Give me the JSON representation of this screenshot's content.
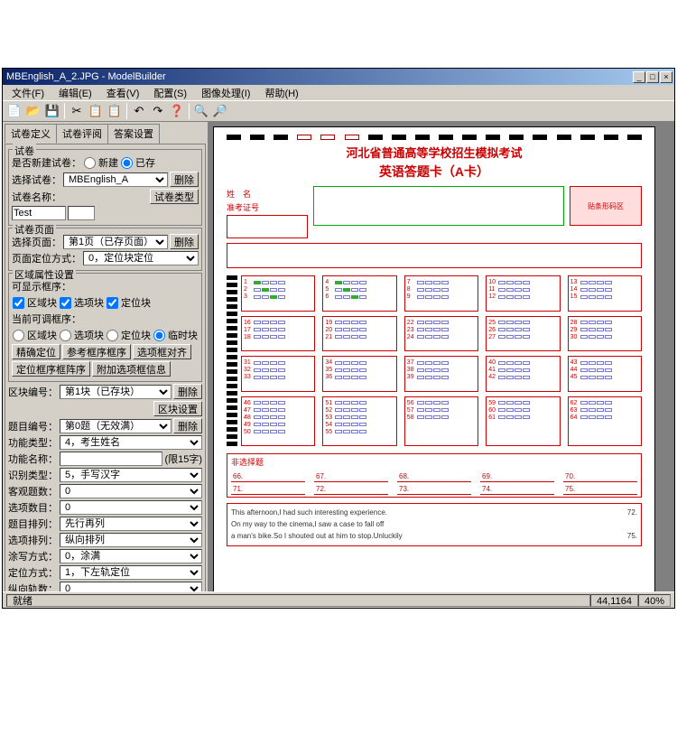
{
  "window": {
    "title": "MBEnglish_A_2.JPG - ModelBuilder"
  },
  "menu": {
    "file": "文件(F)",
    "edit": "编辑(E)",
    "view": "查看(V)",
    "config": "配置(S)",
    "image": "图像处理(I)",
    "help": "帮助(H)"
  },
  "toolbar_icons": [
    "📄",
    "📂",
    "💾",
    "✂",
    "📋",
    "📋",
    "↶",
    "↷",
    "❓",
    "🔍",
    "🔎"
  ],
  "tabs": {
    "t1": "试卷定义",
    "t2": "试卷评阅",
    "t3": "答案设置"
  },
  "panel": {
    "paper": {
      "title": "试卷",
      "new_label": "是否新建试卷：",
      "opt_new": "新建",
      "opt_exist": "已存",
      "select_label": "选择试卷：",
      "select_value": "MBEnglish_A",
      "btn_del": "删除",
      "name_label": "试卷名称：",
      "type_btn": "试卷类型",
      "test_value": "Test"
    },
    "page": {
      "title": "试卷页面",
      "sel_label": "选择页面：",
      "sel_value": "第1页（已存页面）",
      "btn_del": "删除",
      "pos_label": "页面定位方式：",
      "pos_value": "0，定位块定位"
    },
    "region": {
      "title": "区域属性设置",
      "show_label": "可显示框序：",
      "cb1": "区域块",
      "cb2": "选项块",
      "cb3": "定位块",
      "adj_label": "当前可调框序：",
      "r1": "区域块",
      "r2": "选项块",
      "r3": "定位块",
      "r4": "临时块",
      "btn_precise": "精确定位",
      "btn_ref": "参考框序框序",
      "btn_align": "选项框对齐",
      "btn_pos": "定位框序框阵序",
      "btn_extra": "附加选项框信息"
    },
    "block": {
      "num_label": "区块编号：",
      "num_value": "第1块（已存块）",
      "btn_del": "删除",
      "btn_cfg": "区块设置",
      "q_label": "题目编号：",
      "q_value": "第0题（无效满）",
      "btn_qdel": "删除",
      "func_type_label": "功能类型：",
      "func_type_value": "4，考生姓名",
      "func_name_label": "功能名称：",
      "func_name_hint": "(限15字)",
      "rec_label": "识别类型：",
      "rec_value": "5，手写汉字",
      "obj_label": "客观题数：",
      "obj_value": "0",
      "opt_label": "选项数目：",
      "opt_value": "0",
      "arr_label": "题目排列：",
      "arr_value": "先行再列",
      "optarr_label": "选项排列：",
      "optarr_value": "纵向排列",
      "coord_label": "涂写方式：",
      "coord_value": "0，涂满",
      "pos_label": "定位方式：",
      "pos_value": "1，下左轨定位",
      "xy_label": "纵向轨数：",
      "xy_value": "0"
    }
  },
  "sheet": {
    "title1": "河北省普通高等学校招生模拟考试",
    "title2": "英语答题卡（A卡）",
    "name_label": "姓　名",
    "id_label": "准考证号",
    "pink_text": "贴条形码区",
    "written_title": "非选择题",
    "row1": [
      "66.",
      "67.",
      "68.",
      "69.",
      "70."
    ],
    "row2": [
      "71.",
      "72.",
      "73.",
      "74.",
      "75."
    ],
    "essay_l1": "This afternoon,I had such interesting experience.",
    "essay_l2": "On my way to the cinema,I saw a case to fall off",
    "essay_l3": "a man's bike.So I shouted out at him to stop.Unluckily",
    "essay_n1": "72.",
    "essay_n2": "75."
  },
  "status": {
    "ready": "就绪",
    "coords": "44,1164",
    "zoom": "40%"
  },
  "colors": {
    "titlebar_start": "#0a246a",
    "titlebar_end": "#a6caf0",
    "ui_bg": "#d4d0c8",
    "sheet_red": "#c00",
    "bubble_border": "#77c",
    "bubble_fill": "#3a3"
  }
}
